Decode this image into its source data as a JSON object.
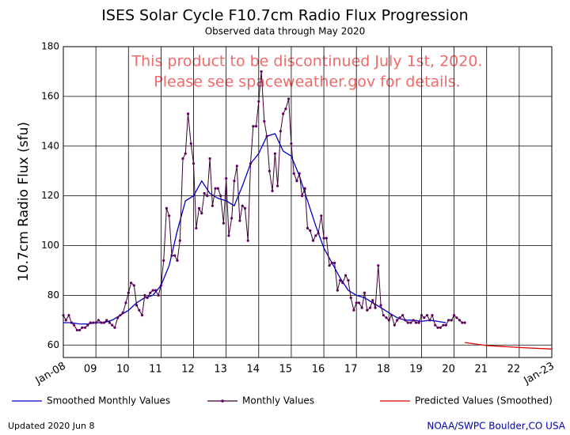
{
  "chart_data": {
    "type": "line",
    "title": "ISES Solar Cycle F10.7cm Radio Flux Progression",
    "subtitle": "Observed data through May 2020",
    "annotations": [
      "This product to be discontinued July 1st, 2020.",
      "Please see spaceweather.gov for details."
    ],
    "ylabel": "10.7cm Radio Flux (sfu)",
    "footer_left": "Updated 2020 Jun  8",
    "footer_right": "NOAA/SWPC Boulder,CO USA",
    "xlim": [
      2008,
      2023
    ],
    "ylim": [
      55,
      180
    ],
    "yticks": [
      60,
      80,
      100,
      120,
      140,
      160,
      180
    ],
    "xticks": [
      {
        "value": 2008,
        "label": "Jan-08"
      },
      {
        "value": 2009,
        "label": "09"
      },
      {
        "value": 2010,
        "label": "10"
      },
      {
        "value": 2011,
        "label": "11"
      },
      {
        "value": 2012,
        "label": "12"
      },
      {
        "value": 2013,
        "label": "13"
      },
      {
        "value": 2014,
        "label": "14"
      },
      {
        "value": 2015,
        "label": "15"
      },
      {
        "value": 2016,
        "label": "16"
      },
      {
        "value": 2017,
        "label": "17"
      },
      {
        "value": 2018,
        "label": "18"
      },
      {
        "value": 2019,
        "label": "19"
      },
      {
        "value": 2020,
        "label": "20"
      },
      {
        "value": 2021,
        "label": "21"
      },
      {
        "value": 2022,
        "label": "22"
      },
      {
        "value": 2023,
        "label": "Jan-23"
      }
    ],
    "grid": true,
    "series": [
      {
        "name": "Smoothed Monthly Values",
        "color": "#0000cc",
        "x": [
          2008,
          2008.25,
          2008.5,
          2008.75,
          2009,
          2009.25,
          2009.5,
          2009.75,
          2010,
          2010.25,
          2010.5,
          2010.75,
          2011,
          2011.25,
          2011.5,
          2011.75,
          2012,
          2012.25,
          2012.5,
          2012.75,
          2013,
          2013.25,
          2013.5,
          2013.75,
          2014,
          2014.25,
          2014.5,
          2014.75,
          2015,
          2015.25,
          2015.5,
          2015.75,
          2016,
          2016.25,
          2016.5,
          2016.75,
          2017,
          2017.25,
          2017.5,
          2017.75,
          2018,
          2018.25,
          2018.5,
          2018.75,
          2019,
          2019.25,
          2019.5,
          2019.75
        ],
        "values": [
          69,
          69,
          68.5,
          68.5,
          69,
          69,
          70,
          72,
          74,
          77,
          79,
          80,
          84,
          92,
          106,
          118,
          120,
          126,
          121,
          119,
          118,
          116,
          124,
          133,
          137,
          144,
          145,
          138,
          136,
          128,
          118,
          108,
          99,
          93,
          87,
          82,
          80,
          79,
          77,
          75,
          73,
          71,
          70,
          70,
          69.5,
          70,
          69.5,
          69
        ]
      },
      {
        "name": "Monthly Values",
        "color": "#3a0030",
        "x": [
          2008,
          2008.08,
          2008.17,
          2008.25,
          2008.33,
          2008.42,
          2008.5,
          2008.58,
          2008.67,
          2008.75,
          2008.83,
          2008.92,
          2009,
          2009.08,
          2009.17,
          2009.25,
          2009.33,
          2009.42,
          2009.5,
          2009.58,
          2009.67,
          2009.75,
          2009.83,
          2009.92,
          2010,
          2010.08,
          2010.17,
          2010.25,
          2010.33,
          2010.42,
          2010.5,
          2010.58,
          2010.67,
          2010.75,
          2010.83,
          2010.92,
          2011,
          2011.08,
          2011.17,
          2011.25,
          2011.33,
          2011.42,
          2011.5,
          2011.58,
          2011.67,
          2011.75,
          2011.83,
          2011.92,
          2012,
          2012.08,
          2012.17,
          2012.25,
          2012.33,
          2012.42,
          2012.5,
          2012.58,
          2012.67,
          2012.75,
          2012.83,
          2012.92,
          2013,
          2013.08,
          2013.17,
          2013.25,
          2013.33,
          2013.42,
          2013.5,
          2013.58,
          2013.67,
          2013.75,
          2013.83,
          2013.92,
          2014,
          2014.08,
          2014.17,
          2014.25,
          2014.33,
          2014.42,
          2014.5,
          2014.58,
          2014.67,
          2014.75,
          2014.83,
          2014.92,
          2015,
          2015.08,
          2015.17,
          2015.25,
          2015.33,
          2015.42,
          2015.5,
          2015.58,
          2015.67,
          2015.75,
          2015.83,
          2015.92,
          2016,
          2016.08,
          2016.17,
          2016.25,
          2016.33,
          2016.42,
          2016.5,
          2016.58,
          2016.67,
          2016.75,
          2016.83,
          2016.92,
          2017,
          2017.08,
          2017.17,
          2017.25,
          2017.33,
          2017.42,
          2017.5,
          2017.58,
          2017.67,
          2017.75,
          2017.83,
          2017.92,
          2018,
          2018.08,
          2018.17,
          2018.25,
          2018.33,
          2018.42,
          2018.5,
          2018.58,
          2018.67,
          2018.75,
          2018.83,
          2018.92,
          2019,
          2019.08,
          2019.17,
          2019.25,
          2019.33,
          2019.42,
          2019.5,
          2019.58,
          2019.67,
          2019.75,
          2019.83,
          2019.92,
          2020,
          2020.08,
          2020.17,
          2020.25,
          2020.33
        ],
        "values": [
          72,
          70,
          72,
          69,
          68,
          66,
          66,
          67,
          67,
          68,
          69,
          69,
          69,
          70,
          69,
          69,
          70,
          69,
          68,
          67,
          71,
          72,
          73,
          77,
          81,
          85,
          84,
          76,
          74,
          72,
          80,
          79,
          81,
          82,
          82,
          80,
          84,
          94,
          115,
          112,
          96,
          96,
          94,
          102,
          135,
          137,
          153,
          141,
          133,
          107,
          115,
          113,
          121,
          120,
          135,
          116,
          123,
          123,
          120,
          109,
          127,
          104,
          111,
          126,
          132,
          110,
          116,
          115,
          102,
          133,
          148,
          148,
          158,
          170,
          150,
          144,
          130,
          122,
          137,
          124,
          146,
          153,
          155,
          159,
          141,
          129,
          126,
          129,
          120,
          123,
          107,
          106,
          102,
          104,
          105,
          112,
          103,
          103,
          92,
          93,
          93,
          82,
          86,
          85,
          88,
          86,
          79,
          74,
          77,
          77,
          75,
          81,
          74,
          75,
          78,
          75,
          92,
          76,
          72,
          71,
          70,
          72,
          68,
          70,
          71,
          72,
          70,
          69,
          69,
          70,
          69,
          69,
          72,
          71,
          72,
          70,
          72,
          68,
          67,
          67,
          68,
          68,
          70,
          70,
          72,
          71,
          70,
          69,
          69
        ]
      },
      {
        "name": "Predicted Values (Smoothed)",
        "color": "#dd0000",
        "x": [
          2020.33,
          2021,
          2022,
          2023
        ],
        "values": [
          61,
          59.8,
          59,
          58.4
        ]
      }
    ]
  }
}
